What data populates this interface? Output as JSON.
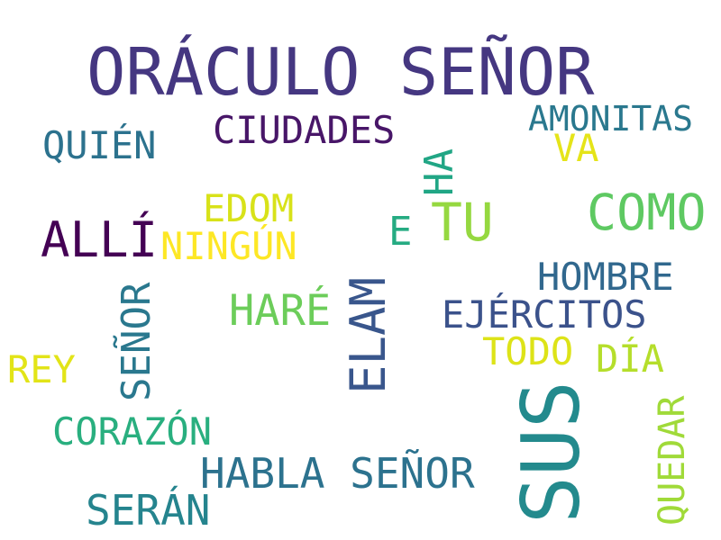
{
  "words": [
    {
      "text": "ORÁCULO SEÑOR",
      "color": "#453781",
      "orientation": "horizontal"
    },
    {
      "text": "SUS",
      "color": "#238a8d",
      "orientation": "vertical"
    },
    {
      "text": "COMO",
      "color": "#5ec962",
      "orientation": "horizontal"
    },
    {
      "text": "ELAM",
      "color": "#39568c",
      "orientation": "vertical"
    },
    {
      "text": "HABLA SEÑOR",
      "color": "#2c728e",
      "orientation": "horizontal"
    },
    {
      "text": "ALLÍ",
      "color": "#440154",
      "orientation": "horizontal"
    },
    {
      "text": "TU",
      "color": "#95d840",
      "orientation": "horizontal"
    },
    {
      "text": "SERÁN",
      "color": "#25848e",
      "orientation": "horizontal"
    },
    {
      "text": "SEÑOR",
      "color": "#2a788e",
      "orientation": "vertical"
    },
    {
      "text": "HARÉ",
      "color": "#6ccd5a",
      "orientation": "horizontal"
    },
    {
      "text": "CIUDADES",
      "color": "#481668",
      "orientation": "horizontal"
    },
    {
      "text": "CORAZÓN",
      "color": "#29af7f",
      "orientation": "horizontal"
    },
    {
      "text": "EJÉRCITOS",
      "color": "#3b528b",
      "orientation": "horizontal"
    },
    {
      "text": "HOMBRE",
      "color": "#31688e",
      "orientation": "horizontal"
    },
    {
      "text": "QUEDAR",
      "color": "#a0da39",
      "orientation": "vertical"
    },
    {
      "text": "QUIÉN",
      "color": "#2c728e",
      "orientation": "horizontal"
    },
    {
      "text": "AMONITAS",
      "color": "#2a788e",
      "orientation": "horizontal"
    },
    {
      "text": "NINGÚN",
      "color": "#fde725",
      "orientation": "horizontal"
    },
    {
      "text": "EDOM",
      "color": "#d8e219",
      "orientation": "horizontal"
    },
    {
      "text": "TODO",
      "color": "#dde318",
      "orientation": "horizontal"
    },
    {
      "text": "REY",
      "color": "#e2e418",
      "orientation": "horizontal"
    },
    {
      "text": "DÍA",
      "color": "#b5de2b",
      "orientation": "horizontal"
    },
    {
      "text": "HA",
      "color": "#21a685",
      "orientation": "vertical"
    },
    {
      "text": "E",
      "color": "#25ab82",
      "orientation": "horizontal"
    },
    {
      "text": "VA",
      "color": "#e5e419",
      "orientation": "horizontal"
    }
  ]
}
